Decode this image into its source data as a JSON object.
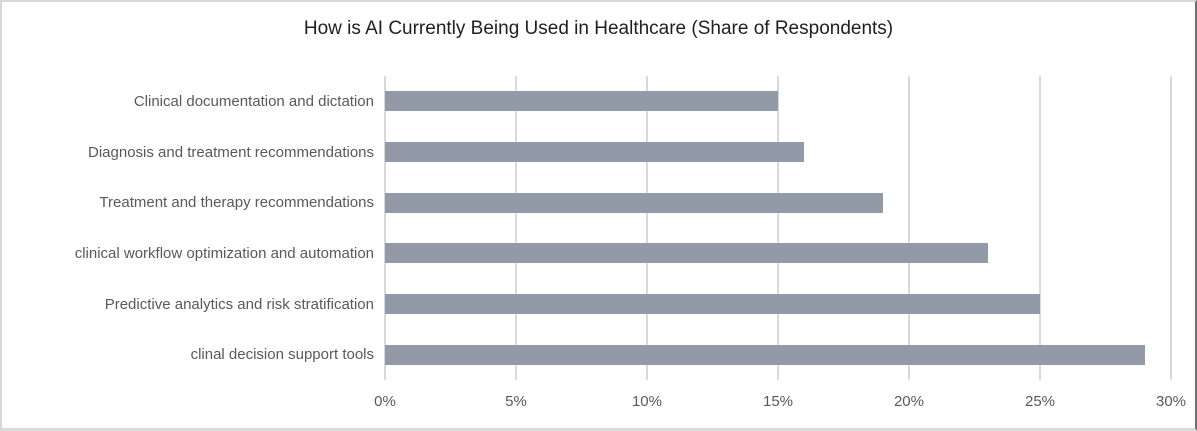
{
  "chart_data": {
    "type": "bar",
    "orientation": "horizontal",
    "title": "How is AI Currently Being Used in Healthcare (Share of Respondents)",
    "categories": [
      "Clinical documentation and dictation",
      "Diagnosis and treatment recommendations",
      "Treatment and therapy recommendations",
      "clinical workflow optimization and automation",
      "Predictive analytics and risk stratification",
      "clinal decision support tools"
    ],
    "values": [
      15,
      16,
      19,
      23,
      25,
      29
    ],
    "unit": "%",
    "xlim": [
      0,
      30
    ],
    "x_ticks": [
      "0%",
      "5%",
      "10%",
      "15%",
      "20%",
      "25%",
      "30%"
    ],
    "xlabel": "",
    "ylabel": "",
    "legend": "none",
    "grid": "vertical",
    "colors": {
      "bar": "#929AA8",
      "gridline": "#D9D9D9",
      "label": "#595959",
      "title": "#1F1F1F"
    }
  }
}
